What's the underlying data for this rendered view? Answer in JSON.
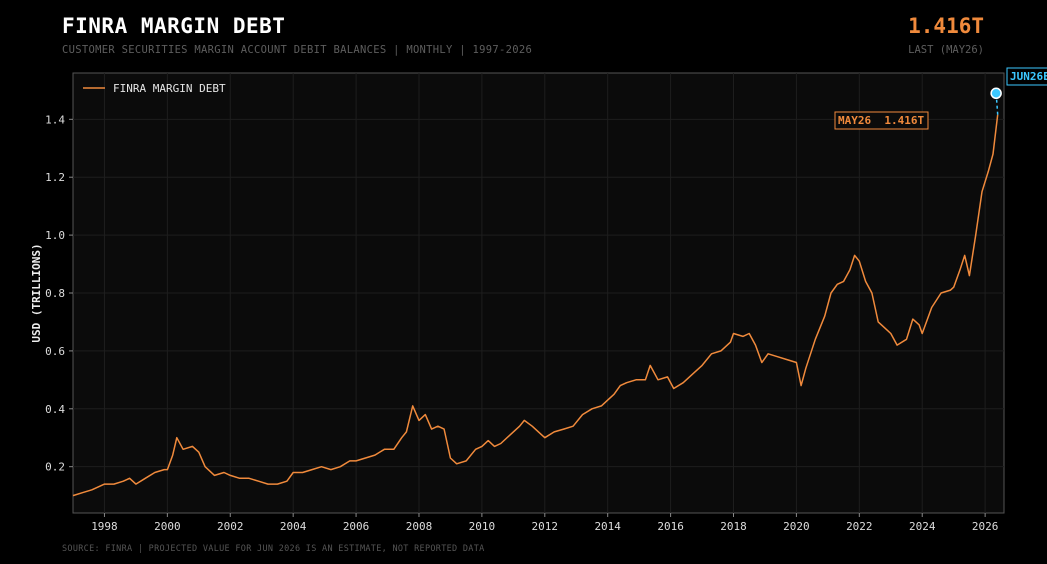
{
  "header": {
    "title": "FINRA MARGIN DEBT",
    "subtitle": "CUSTOMER SECURITIES MARGIN ACCOUNT DEBIT BALANCES  |  MONTHLY  |  1997-2026",
    "last_value": "1.416T",
    "last_label": "LAST (MAY26)"
  },
  "footer": {
    "source": "SOURCE: FINRA  |  PROJECTED VALUE FOR JUN 2026 IS AN ESTIMATE, NOT REPORTED DATA"
  },
  "colors": {
    "line": "#f08a3c",
    "projection": "#3cc8ff",
    "background": "#000000",
    "plot_background": "#0b0b0b",
    "grid": "#1e1e1e"
  },
  "chart_data": {
    "type": "line",
    "title": "FINRA MARGIN DEBT",
    "xlabel": "",
    "ylabel": "USD (TRILLIONS)",
    "xlim": [
      1997.0,
      2026.6
    ],
    "ylim": [
      0.04,
      1.56
    ],
    "xticks": [
      "1998",
      "2000",
      "2002",
      "2004",
      "2006",
      "2008",
      "2010",
      "2012",
      "2014",
      "2016",
      "2018",
      "2020",
      "2022",
      "2024",
      "2026"
    ],
    "yticks": [
      "0.2",
      "0.4",
      "0.6",
      "0.8",
      "1.0",
      "1.2",
      "1.4"
    ],
    "grid": true,
    "legend_position": "top-left",
    "series": [
      {
        "name": "FINRA MARGIN DEBT",
        "x": [
          1997.0,
          1997.3,
          1997.6,
          1998.0,
          1998.3,
          1998.6,
          1998.8,
          1999.0,
          1999.3,
          1999.6,
          1999.9,
          2000.0,
          2000.17,
          2000.3,
          2000.5,
          2000.8,
          2001.0,
          2001.2,
          2001.5,
          2001.8,
          2002.0,
          2002.3,
          2002.6,
          2002.9,
          2003.2,
          2003.5,
          2003.8,
          2004.0,
          2004.3,
          2004.6,
          2004.9,
          2005.2,
          2005.5,
          2005.8,
          2006.0,
          2006.3,
          2006.6,
          2006.9,
          2007.2,
          2007.45,
          2007.6,
          2007.8,
          2008.0,
          2008.2,
          2008.4,
          2008.6,
          2008.8,
          2009.0,
          2009.2,
          2009.5,
          2009.8,
          2010.0,
          2010.2,
          2010.4,
          2010.6,
          2010.9,
          2011.2,
          2011.35,
          2011.6,
          2011.9,
          2012.0,
          2012.3,
          2012.6,
          2012.9,
          2013.2,
          2013.5,
          2013.8,
          2014.0,
          2014.2,
          2014.4,
          2014.6,
          2014.9,
          2015.2,
          2015.35,
          2015.6,
          2015.9,
          2016.1,
          2016.4,
          2016.7,
          2017.0,
          2017.3,
          2017.6,
          2017.9,
          2018.0,
          2018.3,
          2018.5,
          2018.7,
          2018.9,
          2019.1,
          2019.4,
          2019.7,
          2020.0,
          2020.15,
          2020.3,
          2020.6,
          2020.9,
          2021.1,
          2021.3,
          2021.5,
          2021.7,
          2021.85,
          2022.0,
          2022.2,
          2022.4,
          2022.6,
          2022.8,
          2023.0,
          2023.2,
          2023.5,
          2023.7,
          2023.9,
          2024.0,
          2024.3,
          2024.6,
          2024.9,
          2025.0,
          2025.2,
          2025.35,
          2025.5,
          2025.7,
          2025.9,
          2026.1,
          2026.25,
          2026.4
        ],
        "values": [
          0.1,
          0.11,
          0.12,
          0.14,
          0.14,
          0.15,
          0.16,
          0.14,
          0.16,
          0.18,
          0.19,
          0.19,
          0.24,
          0.3,
          0.26,
          0.27,
          0.25,
          0.2,
          0.17,
          0.18,
          0.17,
          0.16,
          0.16,
          0.15,
          0.14,
          0.14,
          0.15,
          0.18,
          0.18,
          0.19,
          0.2,
          0.19,
          0.2,
          0.22,
          0.22,
          0.23,
          0.24,
          0.26,
          0.26,
          0.3,
          0.32,
          0.41,
          0.36,
          0.38,
          0.33,
          0.34,
          0.33,
          0.23,
          0.21,
          0.22,
          0.26,
          0.27,
          0.29,
          0.27,
          0.28,
          0.31,
          0.34,
          0.36,
          0.34,
          0.31,
          0.3,
          0.32,
          0.33,
          0.34,
          0.38,
          0.4,
          0.41,
          0.43,
          0.45,
          0.48,
          0.49,
          0.5,
          0.5,
          0.55,
          0.5,
          0.51,
          0.47,
          0.49,
          0.52,
          0.55,
          0.59,
          0.6,
          0.63,
          0.66,
          0.65,
          0.66,
          0.62,
          0.56,
          0.59,
          0.58,
          0.57,
          0.56,
          0.48,
          0.54,
          0.64,
          0.72,
          0.8,
          0.83,
          0.84,
          0.88,
          0.93,
          0.91,
          0.84,
          0.8,
          0.7,
          0.68,
          0.66,
          0.62,
          0.64,
          0.71,
          0.69,
          0.66,
          0.75,
          0.8,
          0.81,
          0.82,
          0.88,
          0.93,
          0.86,
          1.0,
          1.15,
          1.22,
          1.28,
          1.416
        ]
      }
    ],
    "projection": {
      "label": "JUN26E",
      "from_x": 2026.4,
      "from_y": 1.416,
      "x": 2026.35,
      "y": 1.49
    },
    "annotation": {
      "text": "MAY26  1.416T"
    }
  }
}
